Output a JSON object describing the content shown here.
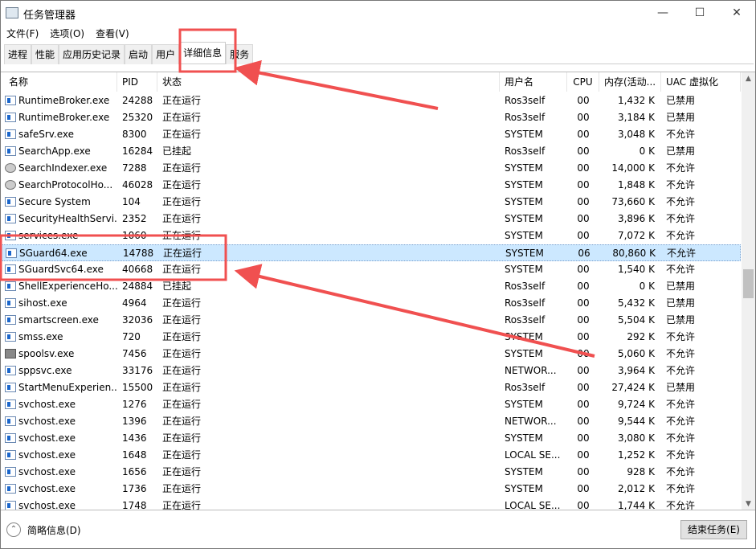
{
  "window": {
    "title": "任务管理器"
  },
  "menu": [
    "文件(F)",
    "选项(O)",
    "查看(V)"
  ],
  "tabs": [
    {
      "label": "进程"
    },
    {
      "label": "性能"
    },
    {
      "label": "应用历史记录"
    },
    {
      "label": "启动"
    },
    {
      "label": "用户"
    },
    {
      "label": "详细信息",
      "active": true
    },
    {
      "label": "服务"
    }
  ],
  "columns": [
    "名称",
    "PID",
    "状态",
    "用户名",
    "CPU",
    "内存(活动...",
    "UAC 虚拟化"
  ],
  "rows": [
    [
      "RuntimeBroker.exe",
      "24288",
      "正在运行",
      "Ros3self",
      "00",
      "1,432 K",
      "已禁用"
    ],
    [
      "RuntimeBroker.exe",
      "25320",
      "正在运行",
      "Ros3self",
      "00",
      "3,184 K",
      "已禁用"
    ],
    [
      "safeSrv.exe",
      "8300",
      "正在运行",
      "SYSTEM",
      "00",
      "3,048 K",
      "不允许"
    ],
    [
      "SearchApp.exe",
      "16284",
      "已挂起",
      "Ros3self",
      "00",
      "0 K",
      "已禁用"
    ],
    [
      "SearchIndexer.exe",
      "7288",
      "正在运行",
      "SYSTEM",
      "00",
      "14,000 K",
      "不允许"
    ],
    [
      "SearchProtocolHo...",
      "46028",
      "正在运行",
      "SYSTEM",
      "00",
      "1,848 K",
      "不允许"
    ],
    [
      "Secure System",
      "104",
      "正在运行",
      "SYSTEM",
      "00",
      "73,660 K",
      "不允许"
    ],
    [
      "SecurityHealthServi...",
      "2352",
      "正在运行",
      "SYSTEM",
      "00",
      "3,896 K",
      "不允许"
    ],
    [
      "services.exe",
      "1060",
      "正在运行",
      "SYSTEM",
      "00",
      "7,072 K",
      "不允许"
    ],
    [
      "SGuard64.exe",
      "14788",
      "正在运行",
      "SYSTEM",
      "06",
      "80,860 K",
      "不允许"
    ],
    [
      "SGuardSvc64.exe",
      "40668",
      "正在运行",
      "SYSTEM",
      "00",
      "1,540 K",
      "不允许"
    ],
    [
      "ShellExperienceHo...",
      "24884",
      "已挂起",
      "Ros3self",
      "00",
      "0 K",
      "已禁用"
    ],
    [
      "sihost.exe",
      "4964",
      "正在运行",
      "Ros3self",
      "00",
      "5,432 K",
      "已禁用"
    ],
    [
      "smartscreen.exe",
      "32036",
      "正在运行",
      "Ros3self",
      "00",
      "5,504 K",
      "已禁用"
    ],
    [
      "smss.exe",
      "720",
      "正在运行",
      "SYSTEM",
      "00",
      "292 K",
      "不允许"
    ],
    [
      "spoolsv.exe",
      "7456",
      "正在运行",
      "SYSTEM",
      "00",
      "5,060 K",
      "不允许"
    ],
    [
      "sppsvc.exe",
      "33176",
      "正在运行",
      "NETWOR...",
      "00",
      "3,964 K",
      "不允许"
    ],
    [
      "StartMenuExperien...",
      "15500",
      "正在运行",
      "Ros3self",
      "00",
      "27,424 K",
      "已禁用"
    ],
    [
      "svchost.exe",
      "1276",
      "正在运行",
      "SYSTEM",
      "00",
      "9,724 K",
      "不允许"
    ],
    [
      "svchost.exe",
      "1396",
      "正在运行",
      "NETWOR...",
      "00",
      "9,544 K",
      "不允许"
    ],
    [
      "svchost.exe",
      "1436",
      "正在运行",
      "SYSTEM",
      "00",
      "3,080 K",
      "不允许"
    ],
    [
      "svchost.exe",
      "1648",
      "正在运行",
      "LOCAL SE...",
      "00",
      "1,252 K",
      "不允许"
    ],
    [
      "svchost.exe",
      "1656",
      "正在运行",
      "SYSTEM",
      "00",
      "928 K",
      "不允许"
    ],
    [
      "svchost.exe",
      "1736",
      "正在运行",
      "SYSTEM",
      "00",
      "2,012 K",
      "不允许"
    ],
    [
      "svchost.exe",
      "1748",
      "正在运行",
      "LOCAL SE...",
      "00",
      "1,744 K",
      "不允许"
    ]
  ],
  "selected_row": 9,
  "footer": {
    "fewer_details": "简略信息(D)",
    "end_task": "结束任务(E)"
  },
  "colors": {
    "selection": "#cce8ff",
    "annotation": "#f05050"
  }
}
